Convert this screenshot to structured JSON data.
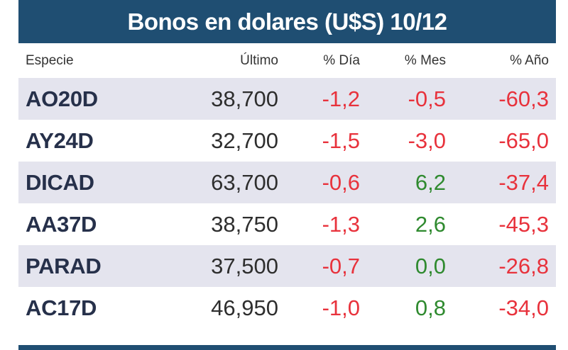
{
  "title": "Bonos en dolares (U$S) 10/12",
  "colors": {
    "title_bg": "#1f4e72",
    "row_alt": "#e4e4ee",
    "negative": "#e8323c",
    "positive": "#2f8a2f"
  },
  "headers": {
    "especie": "Especie",
    "ultimo": "Último",
    "dia": "% Día",
    "mes": "% Mes",
    "anio": "% Año"
  },
  "rows": [
    {
      "especie": "AO20D",
      "ultimo": "38,700",
      "dia": "-1,2",
      "mes": "-0,5",
      "anio": "-60,3"
    },
    {
      "especie": "AY24D",
      "ultimo": "32,700",
      "dia": "-1,5",
      "mes": "-3,0",
      "anio": "-65,0"
    },
    {
      "especie": "DICAD",
      "ultimo": "63,700",
      "dia": "-0,6",
      "mes": "6,2",
      "anio": "-37,4"
    },
    {
      "especie": "AA37D",
      "ultimo": "38,750",
      "dia": "-1,3",
      "mes": "2,6",
      "anio": "-45,3"
    },
    {
      "especie": "PARAD",
      "ultimo": "37,500",
      "dia": "-0,7",
      "mes": "0,0",
      "anio": "-26,8"
    },
    {
      "especie": "AC17D",
      "ultimo": "46,950",
      "dia": "-1,0",
      "mes": "0,8",
      "anio": "-34,0"
    }
  ]
}
